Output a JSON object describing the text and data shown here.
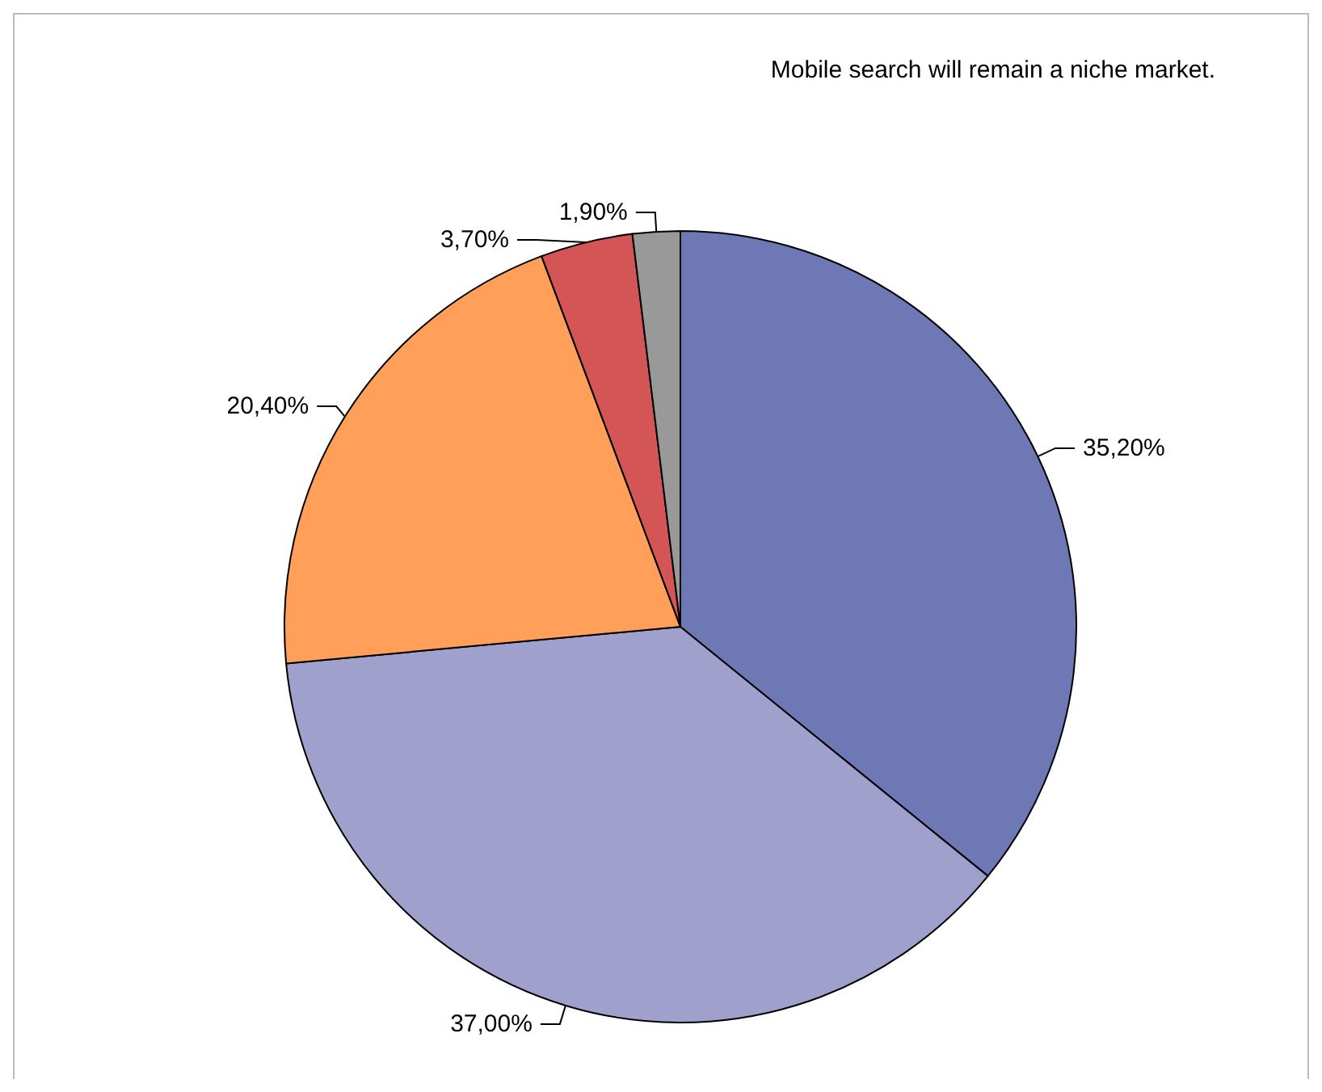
{
  "chart_data": {
    "type": "pie",
    "title": "Mobile search will remain a niche market.",
    "categories": [
      null,
      null,
      null,
      null,
      null
    ],
    "values": [
      35.2,
      37.0,
      20.4,
      3.7,
      1.9
    ],
    "value_labels": [
      "35,20%",
      "37,00%",
      "20,40%",
      "3,70%",
      "1,90%"
    ],
    "colors": [
      "#6e78b4",
      "#a0a0cc",
      "#ff9f5a",
      "#d45555",
      "#999999"
    ]
  }
}
